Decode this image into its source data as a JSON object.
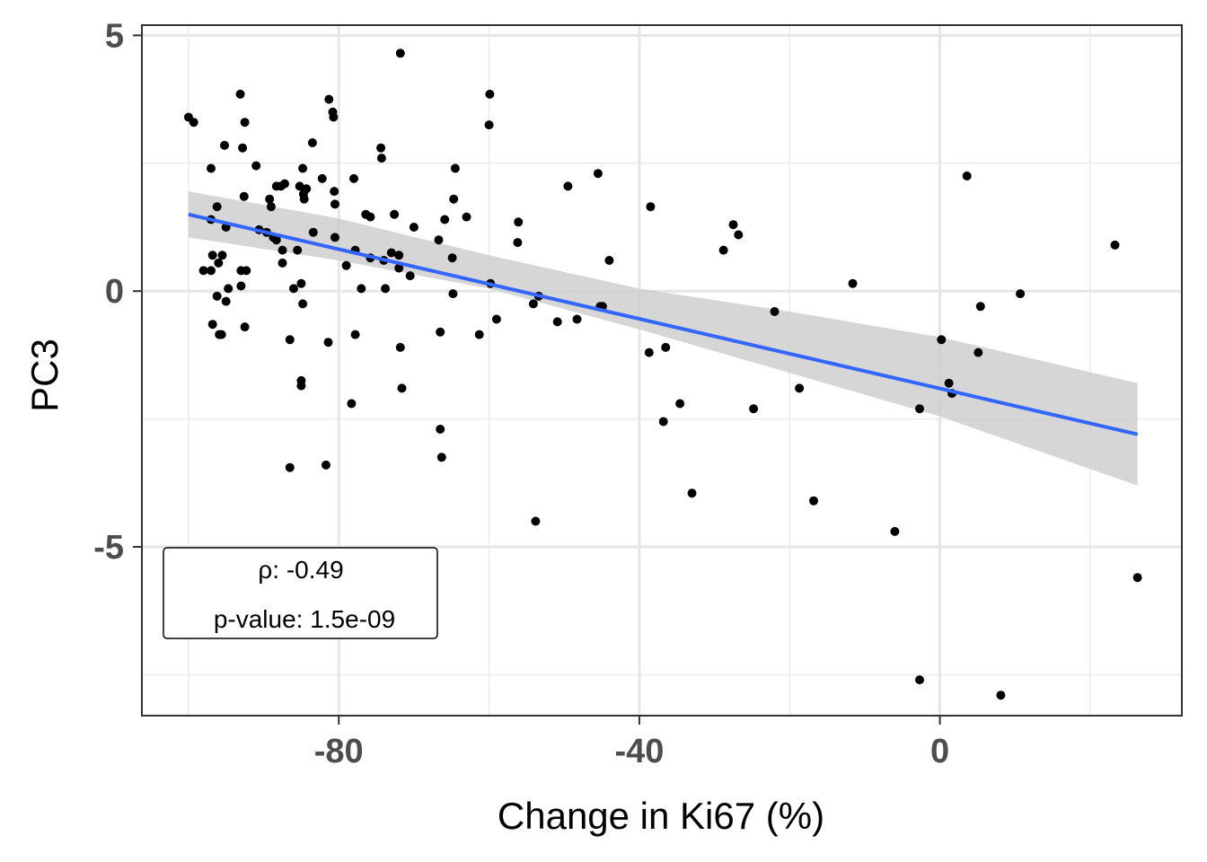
{
  "chart_data": {
    "type": "scatter",
    "xlabel": "Change in Ki67 (%)",
    "ylabel": "PC3",
    "xlim": [
      -106.2,
      32.2
    ],
    "ylim": [
      -8.3,
      5.2
    ],
    "xticks": [
      -80,
      -40,
      0
    ],
    "xtick_labels": [
      "-80",
      "-40",
      "0"
    ],
    "yticks": [
      -5,
      0,
      5
    ],
    "ytick_labels": [
      "-5",
      "0",
      "5"
    ],
    "grid": true,
    "points": [
      [
        -100,
        3.4
      ],
      [
        -99.3,
        3.3
      ],
      [
        -98,
        0.4
      ],
      [
        -97,
        2.4
      ],
      [
        -97,
        1.4
      ],
      [
        -97,
        0.4
      ],
      [
        -96.8,
        0.7
      ],
      [
        -96.8,
        -0.65
      ],
      [
        -96.2,
        1.65
      ],
      [
        -96.2,
        -0.1
      ],
      [
        -96,
        0.55
      ],
      [
        -95.9,
        -0.85
      ],
      [
        -95.5,
        0.7
      ],
      [
        -95.6,
        -0.85
      ],
      [
        -95.2,
        2.85
      ],
      [
        -95,
        1.25
      ],
      [
        -95,
        -0.2
      ],
      [
        -94.7,
        0.05
      ],
      [
        -93.1,
        3.85
      ],
      [
        -92.8,
        2.8
      ],
      [
        -92.6,
        1.85
      ],
      [
        -92.5,
        3.3
      ],
      [
        -93,
        0.4
      ],
      [
        -93,
        0.1
      ],
      [
        -92.5,
        -0.7
      ],
      [
        -92.3,
        0.4
      ],
      [
        -91,
        2.45
      ],
      [
        -90.6,
        1.2
      ],
      [
        -89.6,
        1.15
      ],
      [
        -89.2,
        1.8
      ],
      [
        -89,
        1.65
      ],
      [
        -88.7,
        1.05
      ],
      [
        -88.3,
        2.05
      ],
      [
        -88.3,
        1.0
      ],
      [
        -87.7,
        2.05
      ],
      [
        -87.5,
        0.8
      ],
      [
        -87.5,
        0.55
      ],
      [
        -87.2,
        2.1
      ],
      [
        -86.5,
        -0.95
      ],
      [
        -86.5,
        -3.45
      ],
      [
        -86,
        0.05
      ],
      [
        -85.5,
        0.8
      ],
      [
        -85.2,
        2.05
      ],
      [
        -85,
        0.15
      ],
      [
        -85,
        -1.75
      ],
      [
        -85,
        -1.85
      ],
      [
        -84.8,
        2.4
      ],
      [
        -84.8,
        -0.25
      ],
      [
        -84.7,
        1.9
      ],
      [
        -84.6,
        1.8
      ],
      [
        -84.3,
        2.0
      ],
      [
        -83.5,
        2.9
      ],
      [
        -83.4,
        1.15
      ],
      [
        -82.2,
        2.2
      ],
      [
        -81.7,
        -3.4
      ],
      [
        -81.4,
        -1.0
      ],
      [
        -81.3,
        3.75
      ],
      [
        -80.8,
        3.5
      ],
      [
        -80.7,
        3.4
      ],
      [
        -80.6,
        1.95
      ],
      [
        -80.5,
        1.7
      ],
      [
        -80.5,
        1.05
      ],
      [
        -79,
        0.5
      ],
      [
        -78.3,
        -2.2
      ],
      [
        -78,
        2.2
      ],
      [
        -77.8,
        -0.85
      ],
      [
        -77.8,
        0.8
      ],
      [
        -77,
        0.05
      ],
      [
        -76.4,
        1.5
      ],
      [
        -75.8,
        1.45
      ],
      [
        -75.8,
        0.65
      ],
      [
        -74.4,
        2.8
      ],
      [
        -74.3,
        2.6
      ],
      [
        -74,
        0.6
      ],
      [
        -73.8,
        0.05
      ],
      [
        -73,
        0.75
      ],
      [
        -72.6,
        1.5
      ],
      [
        -72,
        0.45
      ],
      [
        -72,
        0.7
      ],
      [
        -71.8,
        4.65
      ],
      [
        -71.8,
        -1.1
      ],
      [
        -71.6,
        -1.9
      ],
      [
        -70.5,
        0.3
      ],
      [
        -70,
        1.25
      ],
      [
        -66.7,
        1.0
      ],
      [
        -66.5,
        -0.8
      ],
      [
        -66.5,
        -2.7
      ],
      [
        -66.3,
        -3.25
      ],
      [
        -65.9,
        1.4
      ],
      [
        -64.9,
        0.65
      ],
      [
        -64.8,
        -0.05
      ],
      [
        -64.7,
        1.8
      ],
      [
        -64.5,
        2.4
      ],
      [
        -63,
        1.45
      ],
      [
        -61.3,
        -0.85
      ],
      [
        -60,
        3.25
      ],
      [
        -59.9,
        3.85
      ],
      [
        -59.8,
        0.15
      ],
      [
        -59,
        -0.55
      ],
      [
        -56.2,
        0.95
      ],
      [
        -56.1,
        1.35
      ],
      [
        -54.1,
        -0.25
      ],
      [
        -53.8,
        -4.5
      ],
      [
        -53.4,
        -0.1
      ],
      [
        -50.9,
        -0.6
      ],
      [
        -49.5,
        2.05
      ],
      [
        -48.3,
        -0.55
      ],
      [
        -45.5,
        2.3
      ],
      [
        -45.2,
        -0.3
      ],
      [
        -44.9,
        -0.3
      ],
      [
        -44,
        0.6
      ],
      [
        -38.7,
        -1.2
      ],
      [
        -38.5,
        1.65
      ],
      [
        -36.8,
        -2.55
      ],
      [
        -36.5,
        -1.1
      ],
      [
        -34.6,
        -2.2
      ],
      [
        -33,
        -3.95
      ],
      [
        -28.8,
        0.8
      ],
      [
        -27.5,
        1.3
      ],
      [
        -26.8,
        1.1
      ],
      [
        -24.8,
        -2.3
      ],
      [
        -22,
        -0.4
      ],
      [
        -18.7,
        -1.9
      ],
      [
        -16.8,
        -4.1
      ],
      [
        -11.6,
        0.15
      ],
      [
        -6,
        -4.7
      ],
      [
        -2.7,
        -7.6
      ],
      [
        -2.7,
        -2.3
      ],
      [
        0.2,
        -0.95
      ],
      [
        1.2,
        -1.8
      ],
      [
        1.6,
        -2.0
      ],
      [
        3.6,
        2.25
      ],
      [
        5.1,
        -1.2
      ],
      [
        5.4,
        -0.3
      ],
      [
        8.1,
        -7.9
      ],
      [
        10.7,
        -0.05
      ],
      [
        23.3,
        0.9
      ],
      [
        26.3,
        -5.6
      ]
    ],
    "trend_line": {
      "x": [
        -100,
        26.3
      ],
      "y": [
        1.5,
        -2.8
      ],
      "color": "#3366ff"
    },
    "ci_band": {
      "x": [
        -100,
        -80,
        -60,
        -40,
        -20,
        0,
        26.3
      ],
      "upper": [
        1.95,
        1.42,
        0.7,
        0.05,
        -0.4,
        -0.9,
        -1.8
      ],
      "lower": [
        1.05,
        0.6,
        0.05,
        -0.75,
        -1.6,
        -2.45,
        -3.8
      ],
      "color": "#cccccc"
    },
    "point_color": "#000000",
    "annotation": {
      "line1": "ρ: -0.49",
      "line2": "p-value: 1.5e-09"
    }
  }
}
